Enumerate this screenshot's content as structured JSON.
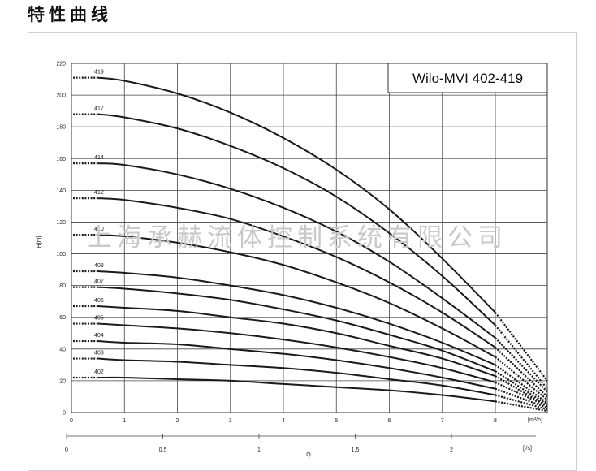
{
  "page": {
    "title": "特性曲线"
  },
  "watermark": {
    "text": "上海承赫流体控制系统有限公司"
  },
  "chart_data": {
    "type": "line",
    "title": "Wilo-MVI 402-419",
    "ylabel": "H[m]",
    "xlabel": "Q",
    "x_unit": "[m³/h]",
    "x2_unit": "[l/s]",
    "xlim": [
      0,
      8
    ],
    "ylim": [
      0,
      220
    ],
    "x_ticks": [
      0,
      1,
      2,
      3,
      4,
      5,
      6,
      7,
      8
    ],
    "y_ticks": [
      0,
      20,
      40,
      60,
      80,
      100,
      120,
      140,
      160,
      180,
      200,
      220
    ],
    "x2_ticks": [
      "0",
      "0,5",
      "1",
      "1,5",
      "2"
    ],
    "grid": true,
    "series": [
      {
        "name": "419",
        "x": [
          0.5,
          1,
          2,
          3,
          4,
          5,
          6,
          7,
          8
        ],
        "y": [
          211,
          209,
          201,
          189,
          173,
          153,
          128,
          97,
          63
        ],
        "extended_y": 20
      },
      {
        "name": "417",
        "x": [
          0.5,
          1,
          2,
          3,
          4,
          5,
          6,
          7,
          8
        ],
        "y": [
          188,
          186,
          179,
          168,
          154,
          136,
          113,
          86,
          55
        ],
        "extended_y": 15
      },
      {
        "name": "414",
        "x": [
          0.5,
          1,
          2,
          3,
          4,
          5,
          6,
          7,
          8
        ],
        "y": [
          157,
          156,
          150,
          141,
          129,
          114,
          95,
          72,
          47
        ],
        "extended_y": 13
      },
      {
        "name": "412",
        "x": [
          0.5,
          1,
          2,
          3,
          4,
          5,
          6,
          7,
          8
        ],
        "y": [
          135,
          134,
          129,
          122,
          111,
          98,
          82,
          63,
          41
        ],
        "extended_y": 10
      },
      {
        "name": "410",
        "x": [
          0.5,
          1,
          2,
          3,
          4,
          5,
          6,
          7,
          8
        ],
        "y": [
          112,
          111,
          107,
          101,
          93,
          82,
          69,
          53,
          35
        ],
        "extended_y": 8
      },
      {
        "name": "408",
        "x": [
          0.5,
          1,
          2,
          3,
          4,
          5,
          6,
          7,
          8
        ],
        "y": [
          89,
          88,
          85,
          80,
          74,
          66,
          56,
          44,
          30
        ],
        "extended_y": 6
      },
      {
        "name": "407",
        "x": [
          0.5,
          1,
          2,
          3,
          4,
          5,
          6,
          7,
          8
        ],
        "y": [
          79,
          78,
          75,
          71,
          65,
          58,
          49,
          39,
          26
        ],
        "extended_y": 5
      },
      {
        "name": "406",
        "x": [
          0.5,
          1,
          2,
          3,
          4,
          5,
          6,
          7,
          8
        ],
        "y": [
          67,
          66,
          64,
          60,
          56,
          50,
          42,
          34,
          23
        ],
        "extended_y": 4
      },
      {
        "name": "405",
        "x": [
          0.5,
          1,
          2,
          3,
          4,
          5,
          6,
          7,
          8
        ],
        "y": [
          56,
          55,
          53,
          50,
          46,
          41,
          35,
          28,
          19
        ],
        "extended_y": 4
      },
      {
        "name": "404",
        "x": [
          0.5,
          1,
          2,
          3,
          4,
          5,
          6,
          7,
          8
        ],
        "y": [
          45,
          44,
          43,
          40,
          37,
          33,
          28,
          22,
          15
        ],
        "extended_y": 3
      },
      {
        "name": "403",
        "x": [
          0.5,
          1,
          2,
          3,
          4,
          5,
          6,
          7,
          8
        ],
        "y": [
          34,
          33,
          32,
          30,
          28,
          25,
          21,
          17,
          11
        ],
        "extended_y": 2
      },
      {
        "name": "402",
        "x": [
          0.5,
          1,
          2,
          3,
          4,
          5,
          6,
          7,
          8
        ],
        "y": [
          22,
          22,
          21,
          20,
          18,
          16,
          14,
          11,
          7
        ],
        "extended_y": 1
      }
    ]
  }
}
